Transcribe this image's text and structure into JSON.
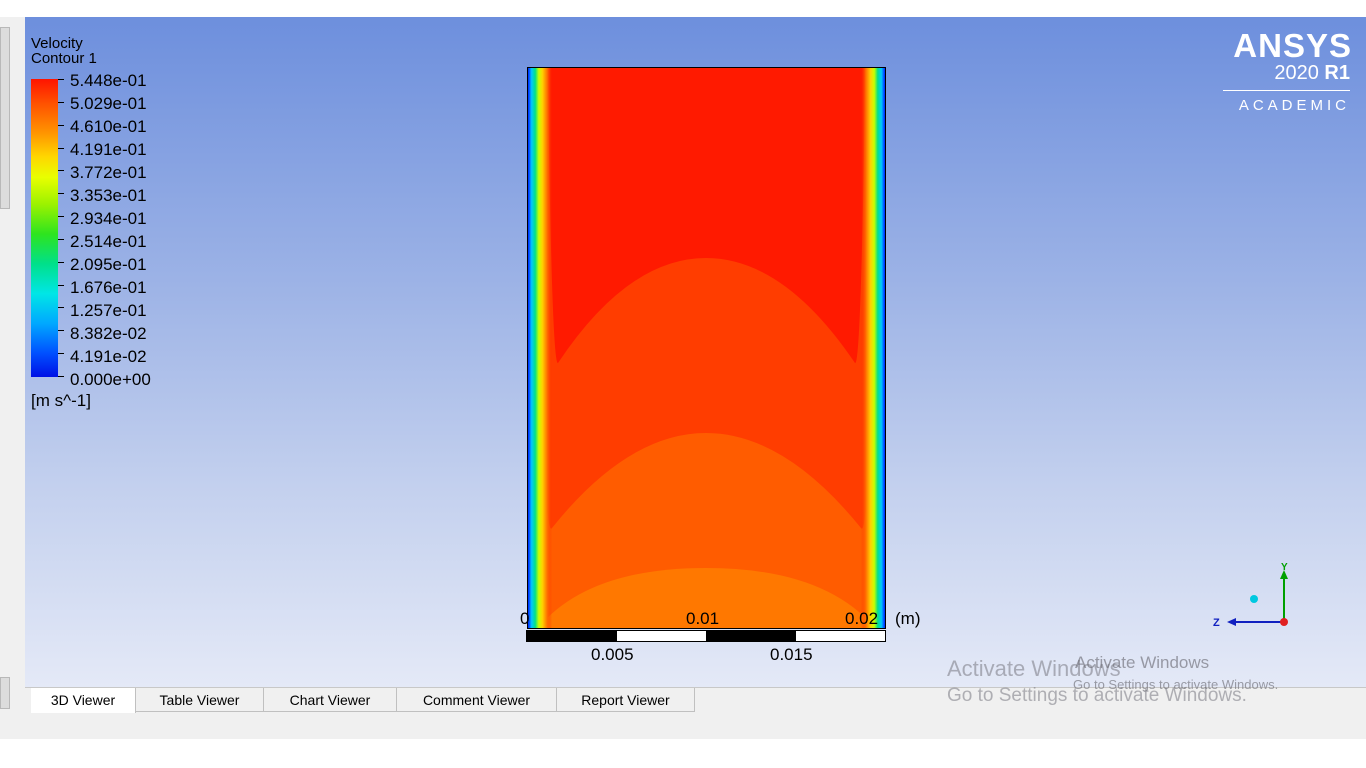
{
  "legend": {
    "title_line1": "Velocity",
    "title_line2": "Contour 1",
    "labels": [
      "5.448e-01",
      "5.029e-01",
      "4.610e-01",
      "4.191e-01",
      "3.772e-01",
      "3.353e-01",
      "2.934e-01",
      "2.514e-01",
      "2.095e-01",
      "1.676e-01",
      "1.257e-01",
      "8.382e-02",
      "4.191e-02",
      "0.000e+00"
    ],
    "unit": "[m s^-1]"
  },
  "ruler": {
    "top_labels": [
      "0",
      "0.01",
      "0.02"
    ],
    "unit": "(m)",
    "bottom_labels": [
      "0.005",
      "0.015"
    ]
  },
  "logo": {
    "brand": "ANSYS",
    "version": "2020",
    "release": "R1",
    "edition": "ACADEMIC"
  },
  "triad": {
    "y_label": "Y",
    "z_label": "Z"
  },
  "tabs": [
    {
      "label": "3D Viewer",
      "active": true
    },
    {
      "label": "Table Viewer",
      "active": false
    },
    {
      "label": "Chart Viewer",
      "active": false
    },
    {
      "label": "Comment Viewer",
      "active": false
    },
    {
      "label": "Report Viewer",
      "active": false
    }
  ],
  "watermark": {
    "line1": "Activate Windows",
    "line2": "Go to Settings to activate Windows."
  },
  "colors": {
    "contour_max": "#ff1400",
    "contour_band2": "#ff3c00",
    "contour_band3": "#ff5a00",
    "contour_band4": "#ff7800",
    "wall_low": "#0010e6"
  }
}
